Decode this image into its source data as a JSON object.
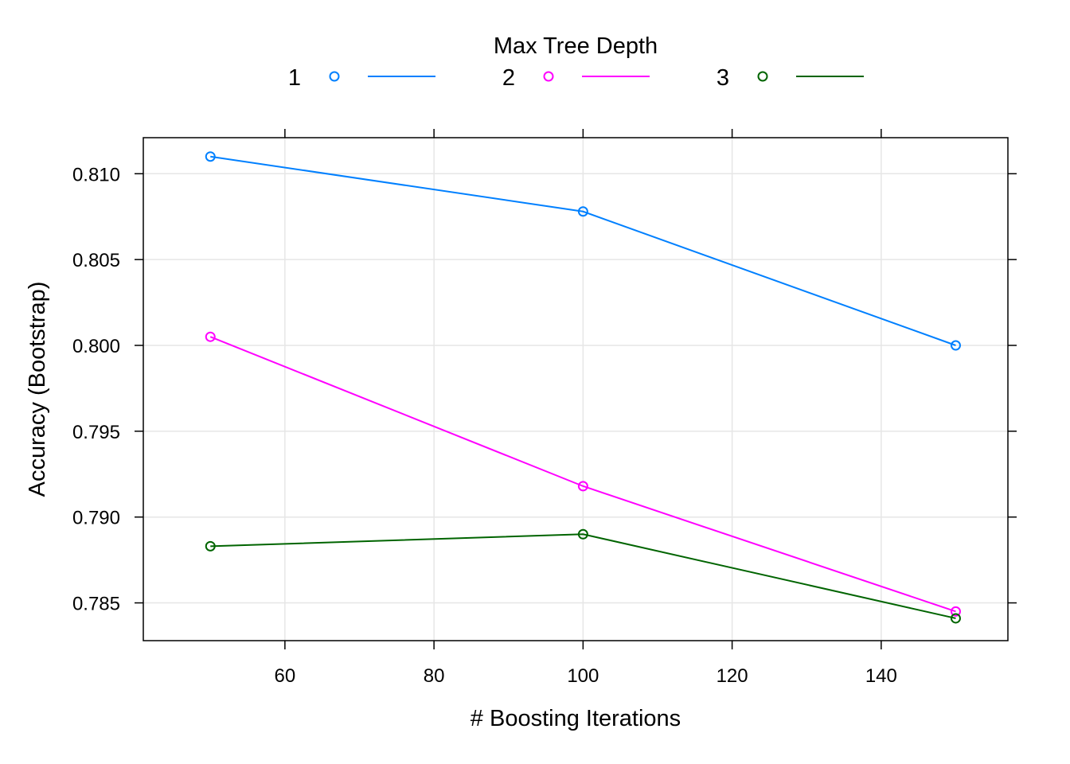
{
  "chart_data": {
    "type": "line",
    "title": "",
    "legend_title": "Max Tree Depth",
    "legend_position": "top",
    "xlabel": "# Boosting Iterations",
    "ylabel": "Accuracy (Bootstrap)",
    "x": [
      50,
      100,
      150
    ],
    "xlim": [
      41,
      157
    ],
    "ylim": [
      0.7828,
      0.8121
    ],
    "xticks": [
      60,
      80,
      100,
      120,
      140
    ],
    "xtick_labels": [
      "60",
      "80",
      "100",
      "120",
      "140"
    ],
    "yticks": [
      0.785,
      0.79,
      0.795,
      0.8,
      0.805,
      0.81
    ],
    "ytick_labels": [
      "0.785",
      "0.790",
      "0.795",
      "0.800",
      "0.805",
      "0.810"
    ],
    "grid": true,
    "series": [
      {
        "name": "1",
        "color": "#0080ff",
        "values": [
          0.811,
          0.8078,
          0.8
        ]
      },
      {
        "name": "2",
        "color": "#ff00ff",
        "values": [
          0.8005,
          0.7918,
          0.7845
        ]
      },
      {
        "name": "3",
        "color": "#006400",
        "values": [
          0.7883,
          0.789,
          0.7841
        ]
      }
    ]
  }
}
